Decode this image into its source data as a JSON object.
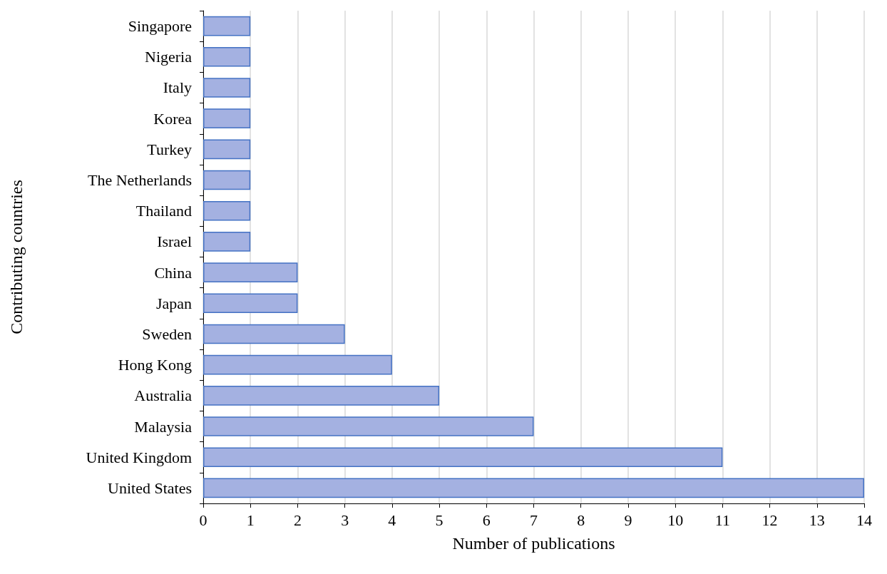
{
  "chart_data": {
    "type": "bar",
    "orientation": "horizontal",
    "xlabel": "Number of publications",
    "ylabel": "Contributing countries",
    "categories": [
      "Singapore",
      "Nigeria",
      "Italy",
      "Korea",
      "Turkey",
      "The Netherlands",
      "Thailand",
      "Israel",
      "China",
      "Japan",
      "Sweden",
      "Hong Kong",
      "Australia",
      "Malaysia",
      "United Kingdom",
      "United States"
    ],
    "values": [
      1,
      1,
      1,
      1,
      1,
      1,
      1,
      1,
      2,
      2,
      3,
      4,
      5,
      7,
      11,
      14
    ],
    "color": "#a4b1e1",
    "xlim": [
      0,
      14
    ],
    "xticks": [
      0,
      1,
      2,
      3,
      4,
      5,
      6,
      7,
      8,
      9,
      10,
      11,
      12,
      13,
      14
    ],
    "grid": "x"
  }
}
